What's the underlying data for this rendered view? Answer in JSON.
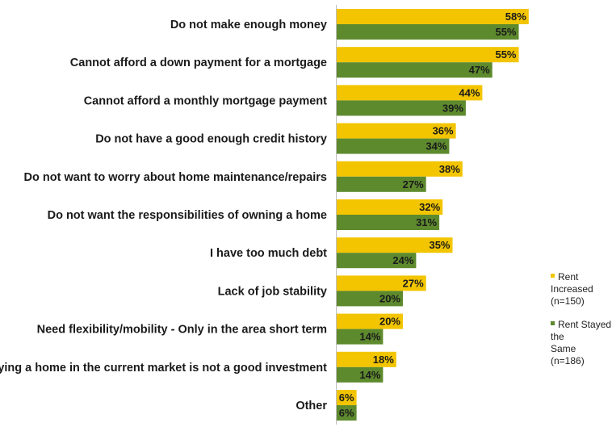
{
  "chart_data": {
    "type": "bar",
    "orientation": "horizontal",
    "categories": [
      "Do not make enough money",
      "Cannot afford a down payment for a mortgage",
      "Cannot afford a monthly mortgage payment",
      "Do not have a good enough credit history",
      "Do not want to worry about home maintenance/repairs",
      "Do not want the responsibilities of owning a home",
      "I have too much debt",
      "Lack of job stability",
      "Need flexibility/mobility - Only in the area short term",
      "Buying a home in the current market is not a good investment",
      "Other"
    ],
    "series": [
      {
        "name": "Rent Increased (n=150)",
        "color": "#f2c500",
        "values": [
          58,
          55,
          44,
          36,
          38,
          32,
          35,
          27,
          20,
          18,
          6
        ],
        "labels": [
          "58%",
          "55%",
          "44%",
          "36%",
          "38%",
          "32%",
          "35%",
          "27%",
          "20%",
          "18%",
          "6%"
        ]
      },
      {
        "name": "Rent Stayed the Same (n=186)",
        "color": "#5e8a2e",
        "values": [
          55,
          47,
          39,
          34,
          27,
          31,
          24,
          20,
          14,
          14,
          6
        ],
        "labels": [
          "55%",
          "47%",
          "39%",
          "34%",
          "27%",
          "31%",
          "24%",
          "20%",
          "14%",
          "14%",
          "6%"
        ]
      }
    ],
    "legend": {
      "position": "right",
      "items": [
        {
          "line1": "Rent Increased",
          "line2": "(n=150)",
          "color": "#f2c500"
        },
        {
          "line1": "Rent Stayed the",
          "line2": "Same (n=186)",
          "color": "#5e8a2e"
        }
      ]
    },
    "xlim": [
      0,
      100
    ],
    "grid": false
  }
}
